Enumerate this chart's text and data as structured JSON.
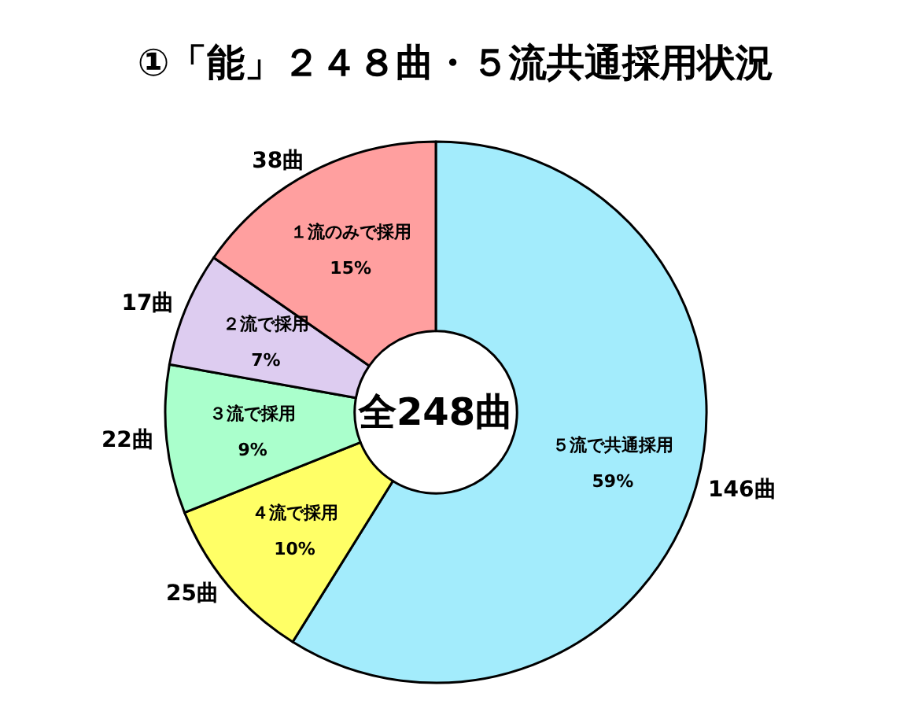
{
  "chart_data": {
    "type": "donut",
    "title": "①「能」２４８曲・５流共通採用状況",
    "categories": [
      "５流で共通採用",
      "４流で採用",
      "３流で採用",
      "２流で採用",
      "１流のみで採用"
    ],
    "values": [
      146,
      25,
      22,
      17,
      38
    ],
    "colors": [
      "#a3ecfc",
      "#ffff66",
      "#aaffcc",
      "#ddccf0",
      "#ff9f9f"
    ],
    "value_labels": [
      "146曲",
      "25曲",
      "22曲",
      "17曲",
      "38曲"
    ],
    "annotations": [
      {
        "text": "59%",
        "x": "５流で共通採用"
      },
      {
        "text": "10%",
        "x": "４流で採用"
      },
      {
        "text": "9%",
        "x": "３流で採用"
      },
      {
        "text": "7%",
        "x": "２流で採用"
      },
      {
        "text": "15%",
        "x": "１流のみで採用"
      },
      "全248曲"
    ]
  }
}
